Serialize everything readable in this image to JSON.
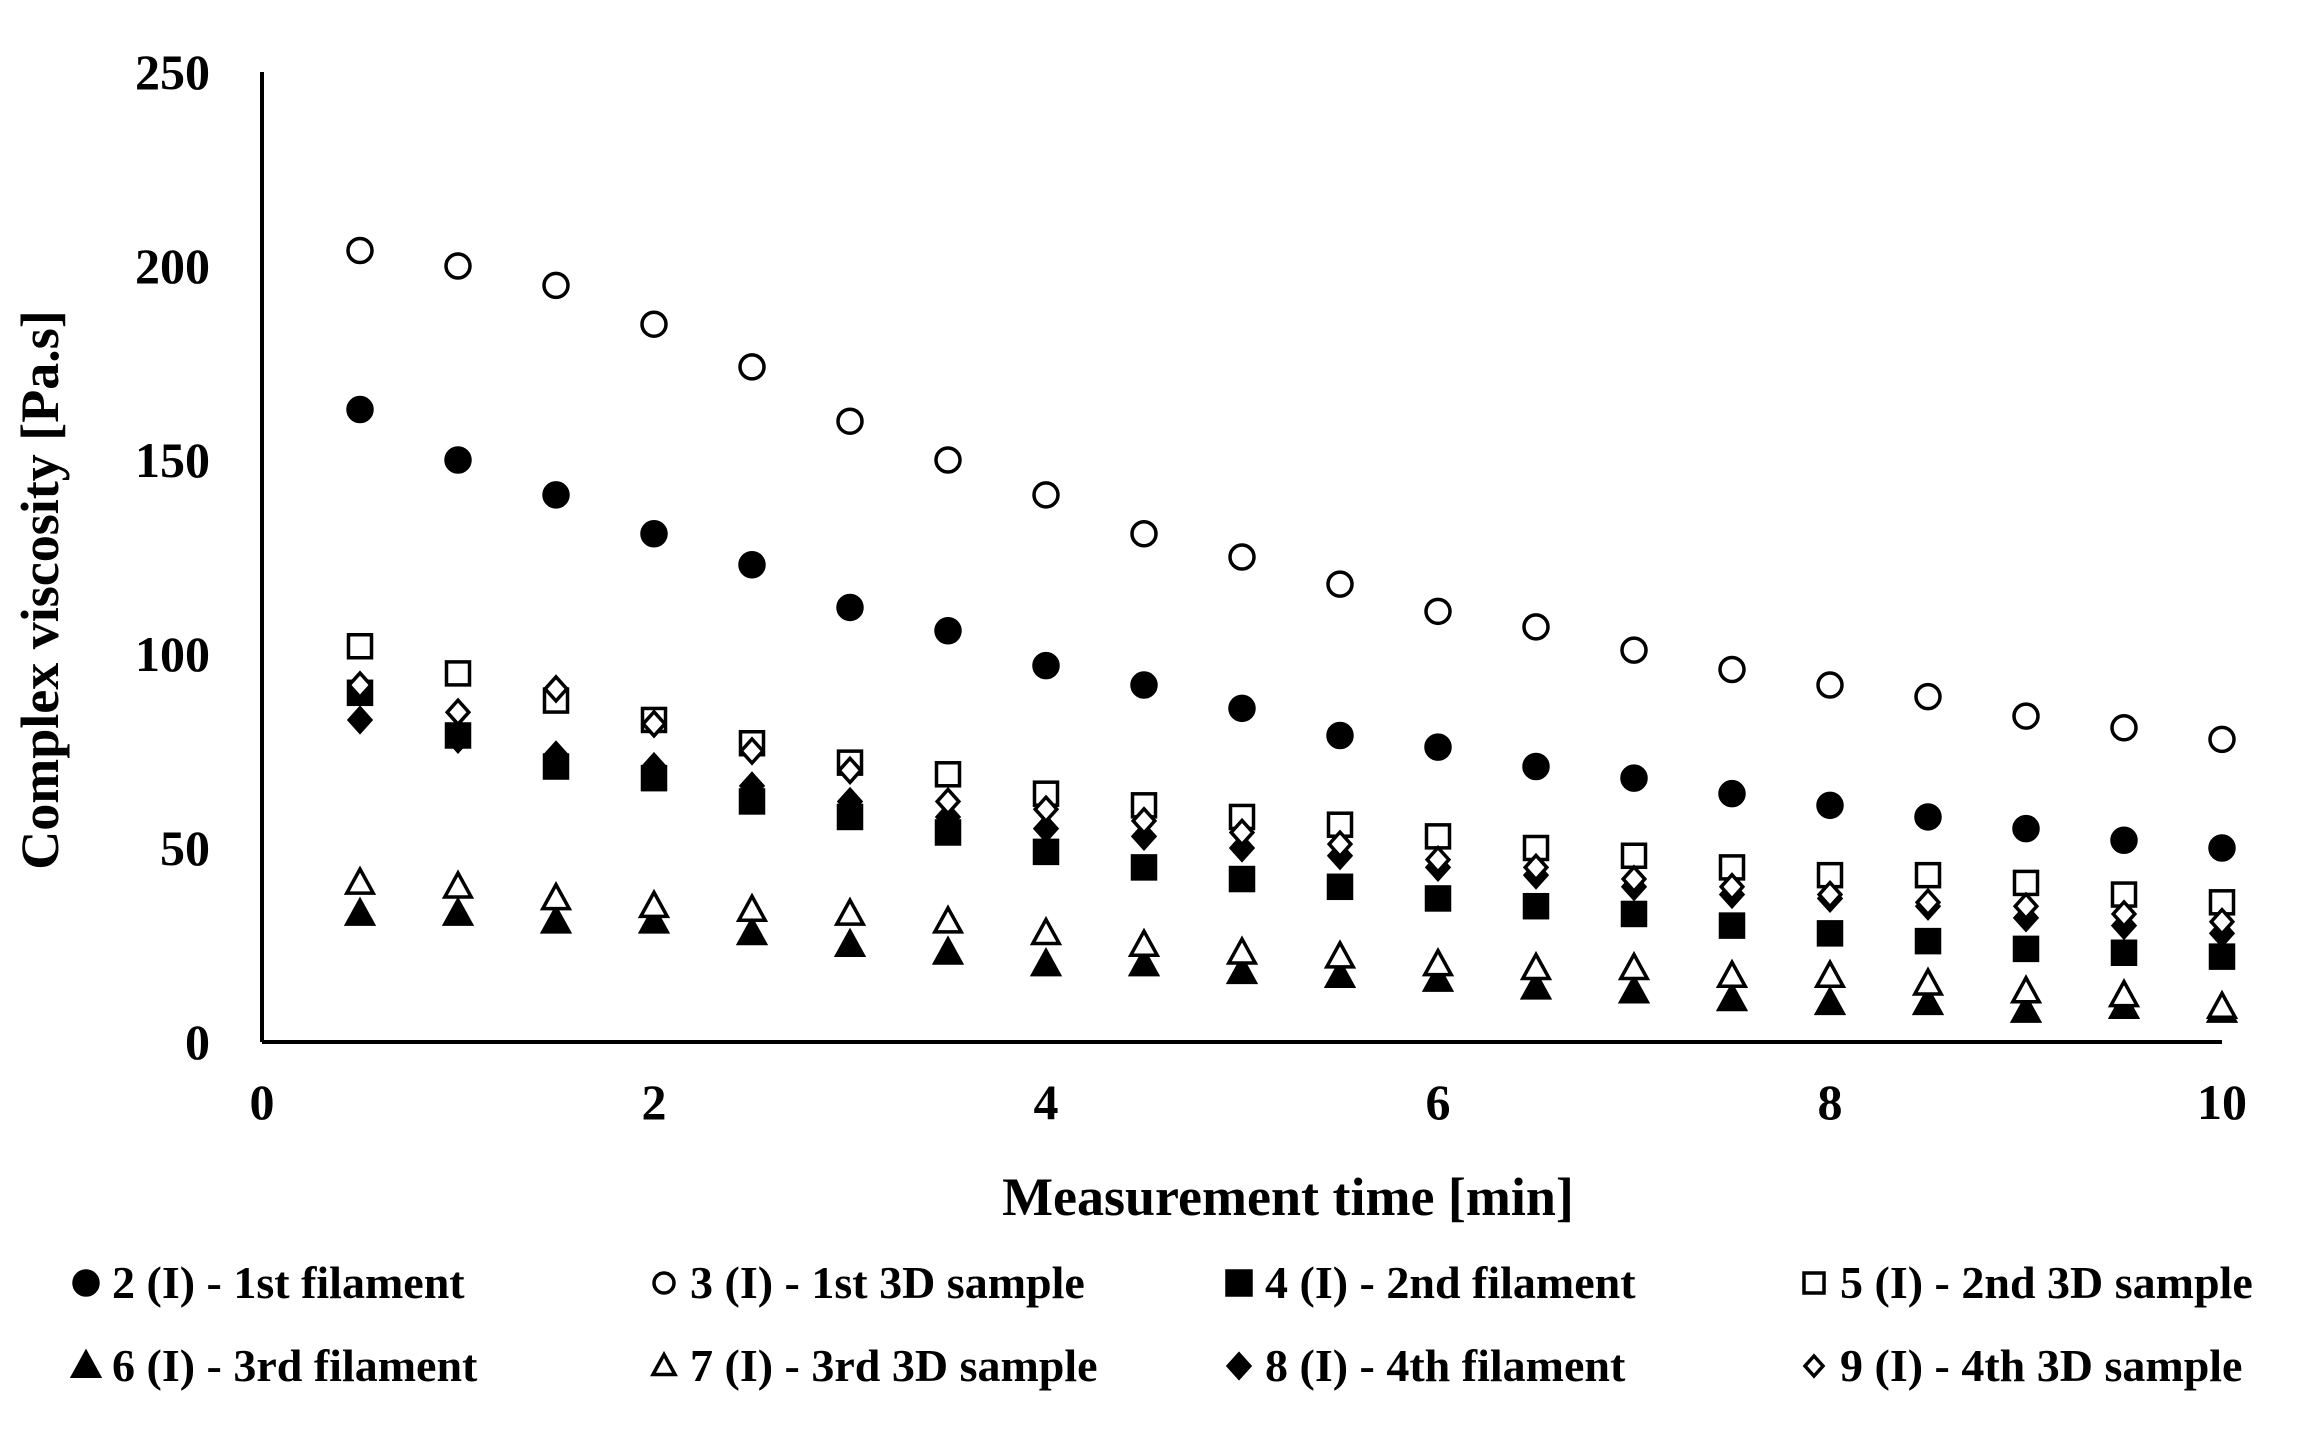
{
  "chart_data": {
    "type": "scatter",
    "title": "",
    "xlabel": "Measurement time [min]",
    "ylabel": "Complex viscosity [Pa.s]",
    "xlim": [
      0,
      10
    ],
    "ylim": [
      0,
      250
    ],
    "xticks": [
      0,
      2,
      4,
      6,
      8,
      10
    ],
    "xtick_labels": [
      "0",
      "2",
      "4",
      "6",
      "8",
      "10"
    ],
    "yticks": [
      0,
      50,
      100,
      150,
      200,
      250
    ],
    "ytick_labels": [
      "0",
      "50",
      "100",
      "150",
      "200",
      "250"
    ],
    "grid": false,
    "legend_position": "bottom",
    "x": [
      0.5,
      1.0,
      1.5,
      2.0,
      2.5,
      3.0,
      3.5,
      4.0,
      4.5,
      5.0,
      5.5,
      6.0,
      6.5,
      7.0,
      7.5,
      8.0,
      8.5,
      9.0,
      9.5,
      10.0
    ],
    "series": [
      {
        "name": "2 (I) - 1st filament",
        "marker": "circle",
        "filled": true,
        "values": [
          163,
          150,
          141,
          131,
          123,
          112,
          106,
          97,
          92,
          86,
          79,
          76,
          71,
          68,
          64,
          61,
          58,
          55,
          52,
          50
        ]
      },
      {
        "name": "3 (I) - 1st 3D sample",
        "marker": "circle",
        "filled": false,
        "values": [
          204,
          200,
          195,
          185,
          174,
          160,
          150,
          141,
          131,
          125,
          118,
          111,
          107,
          101,
          96,
          92,
          89,
          84,
          81,
          78
        ]
      },
      {
        "name": "4 (I) - 2nd filament",
        "marker": "square",
        "filled": true,
        "values": [
          90,
          79,
          71,
          68,
          62,
          58,
          54,
          49,
          45,
          42,
          40,
          37,
          35,
          33,
          30,
          28,
          26,
          24,
          23,
          22
        ]
      },
      {
        "name": "5 (I) - 2nd 3D sample",
        "marker": "square",
        "filled": false,
        "values": [
          102,
          95,
          88,
          83,
          77,
          72,
          69,
          64,
          61,
          58,
          56,
          53,
          50,
          48,
          45,
          43,
          43,
          41,
          38,
          36
        ]
      },
      {
        "name": "6 (I) - 3rd filament",
        "marker": "triangle",
        "filled": true,
        "values": [
          33,
          33,
          31,
          31,
          28,
          25,
          23,
          20,
          20,
          18,
          17,
          16,
          14,
          13,
          11,
          10,
          10,
          8,
          9,
          8
        ]
      },
      {
        "name": "7 (I) - 3rd 3D sample",
        "marker": "triangle",
        "filled": false,
        "values": [
          41,
          40,
          37,
          35,
          34,
          33,
          31,
          28,
          25,
          23,
          22,
          20,
          19,
          19,
          17,
          17,
          15,
          13,
          12,
          9
        ]
      },
      {
        "name": "8 (I) - 4th filament",
        "marker": "diamond",
        "filled": true,
        "values": [
          83,
          78,
          74,
          71,
          66,
          62,
          58,
          55,
          53,
          50,
          48,
          45,
          43,
          40,
          38,
          37,
          35,
          32,
          30,
          28
        ]
      },
      {
        "name": "9 (I) - 4th 3D sample",
        "marker": "diamond",
        "filled": false,
        "values": [
          92,
          85,
          91,
          82,
          75,
          70,
          62,
          60,
          57,
          54,
          51,
          47,
          45,
          42,
          40,
          38,
          36,
          35,
          33,
          31
        ]
      }
    ]
  }
}
